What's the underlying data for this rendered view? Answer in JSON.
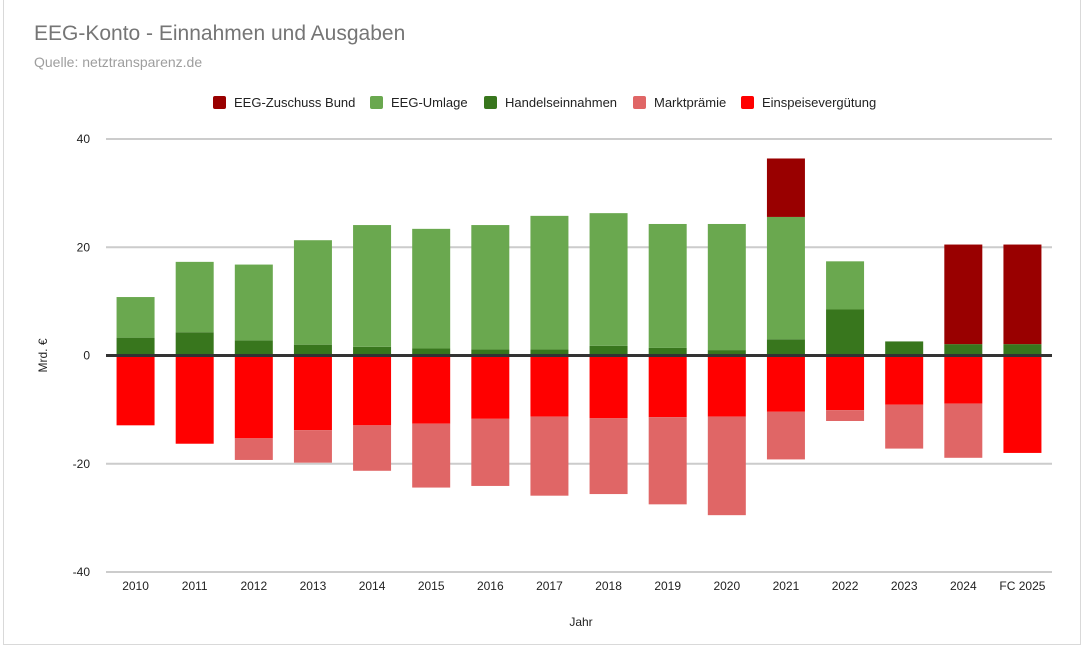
{
  "chart_data": {
    "type": "bar",
    "stacked": true,
    "title": "EEG-Konto - Einnahmen und Ausgaben",
    "subtitle": "Quelle: netztransparenz.de",
    "xlabel": "Jahr",
    "ylabel": "Mrd. €",
    "ylim": [
      -40,
      40
    ],
    "yticks": [
      40,
      20,
      0,
      -20,
      -40
    ],
    "grid": true,
    "legend_position": "top",
    "categories": [
      "2010",
      "2011",
      "2012",
      "2013",
      "2014",
      "2015",
      "2016",
      "2017",
      "2018",
      "2019",
      "2020",
      "2021",
      "2022",
      "2023",
      "2024",
      "FC 2025"
    ],
    "series": [
      {
        "name": "EEG-Zuschuss Bund",
        "color": "#990000",
        "values": [
          0,
          0,
          0,
          0,
          0,
          0,
          0,
          0,
          0,
          0,
          0,
          10.8,
          0,
          0,
          18.4,
          18.4
        ]
      },
      {
        "name": "EEG-Umlage",
        "color": "#6aa84f",
        "values": [
          7.5,
          13.0,
          14.0,
          19.3,
          22.5,
          22.1,
          23.0,
          24.7,
          24.5,
          22.9,
          23.3,
          22.6,
          8.9,
          0,
          0,
          0
        ]
      },
      {
        "name": "Handelseinnahmen",
        "color": "#38761d",
        "values": [
          3.3,
          4.3,
          2.8,
          2.0,
          1.6,
          1.3,
          1.1,
          1.1,
          1.8,
          1.4,
          1.0,
          3.0,
          8.5,
          2.6,
          2.1,
          2.1
        ]
      },
      {
        "name": "Marktprämie",
        "color": "#e06666",
        "values": [
          0,
          0,
          -4.0,
          -6.0,
          -8.4,
          -11.8,
          -12.4,
          -14.6,
          -14.0,
          -16.1,
          -18.2,
          -8.8,
          -2.0,
          -8.1,
          -10.0,
          0
        ]
      },
      {
        "name": "Einspeisevergütung",
        "color": "#ff0000",
        "values": [
          -12.9,
          -16.3,
          -15.3,
          -13.8,
          -12.9,
          -12.6,
          -11.7,
          -11.3,
          -11.6,
          -11.4,
          -11.3,
          -10.4,
          -10.1,
          -9.1,
          -8.9,
          -18.0
        ]
      }
    ]
  }
}
